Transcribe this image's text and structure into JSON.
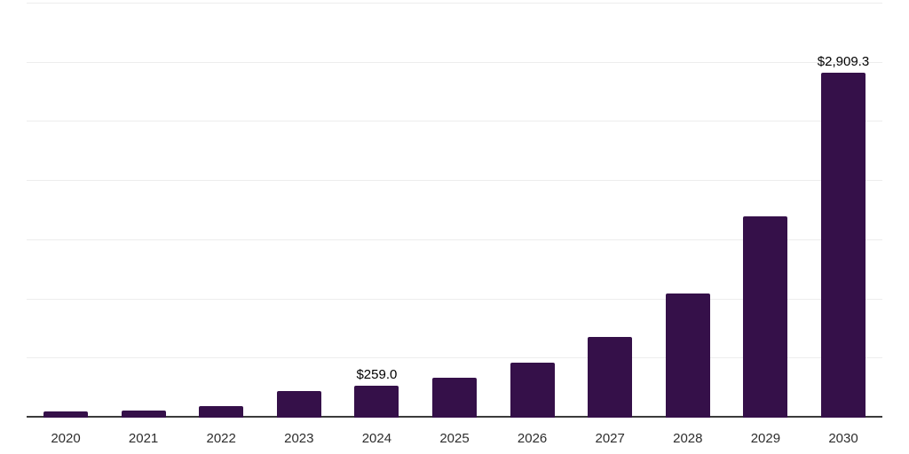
{
  "chart_data": {
    "type": "bar",
    "title": "",
    "xlabel": "",
    "ylabel": "",
    "categories": [
      "2020",
      "2021",
      "2022",
      "2023",
      "2024",
      "2025",
      "2026",
      "2027",
      "2028",
      "2029",
      "2030"
    ],
    "values": [
      42,
      55,
      92,
      215,
      259.0,
      332,
      460,
      678,
      1040,
      1692,
      2909.3
    ],
    "data_labels": {
      "2024": "$259.0",
      "2030": "$2,909.3"
    },
    "ylim": [
      0,
      3500
    ],
    "gridline_step": 500,
    "grid": "horizontal",
    "legend": false,
    "y_tick_labels_visible": false,
    "value_prefix": "$"
  },
  "colors": {
    "background": "#ffffff",
    "bar": "#351049",
    "gridline": "#ededed",
    "axis_line": "#3b3b3b",
    "tick_label": "#2d2d2d",
    "data_label": "#000000"
  }
}
